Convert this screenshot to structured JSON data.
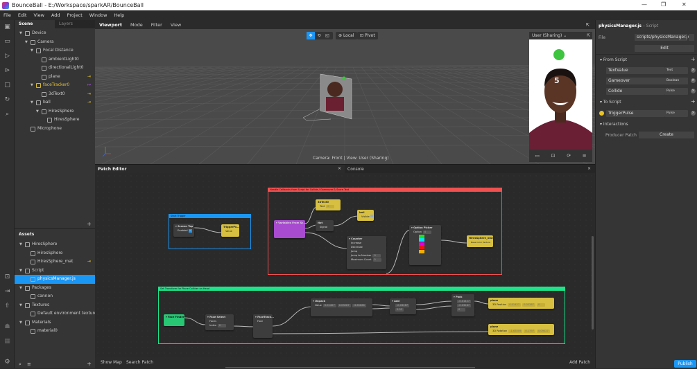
{
  "window": {
    "title": "BounceBall - E:/Workspace/sparkAR/BounceBall",
    "controls": [
      "—",
      "❐",
      "✕"
    ]
  },
  "menu": [
    "File",
    "Edit",
    "View",
    "Add",
    "Project",
    "Window",
    "Help"
  ],
  "scene_panel": {
    "tabs": [
      "Scene",
      "Layers"
    ],
    "items": [
      {
        "label": "Device",
        "depth": 0,
        "arrow": true
      },
      {
        "label": "Camera",
        "depth": 1,
        "arrow": true
      },
      {
        "label": "Focal Distance",
        "depth": 2,
        "arrow": true
      },
      {
        "label": "ambientLight0",
        "depth": 3
      },
      {
        "label": "directionalLight0",
        "depth": 3
      },
      {
        "label": "plane",
        "depth": 3,
        "pin": "⇥"
      },
      {
        "label": "faceTracker0",
        "depth": 2,
        "arrow": true,
        "pin": "↦",
        "highlight": true
      },
      {
        "label": "3dText0",
        "depth": 3,
        "pin": "⇥"
      },
      {
        "label": "ball",
        "depth": 2,
        "arrow": true,
        "pin": "⇥"
      },
      {
        "label": "HiresSphere",
        "depth": 3,
        "arrow": true
      },
      {
        "label": "HiresSphere",
        "depth": 4
      },
      {
        "label": "Microphone",
        "depth": 1
      }
    ],
    "add": "+"
  },
  "assets_panel": {
    "title": "Assets",
    "items": [
      {
        "label": "HiresSphere",
        "depth": 0,
        "arrow": true
      },
      {
        "label": "HiresSphere",
        "depth": 1
      },
      {
        "label": "HiresSphere_mat",
        "depth": 1,
        "pin": "⇥"
      },
      {
        "label": "Script",
        "depth": 0,
        "arrow": true
      },
      {
        "label": "physicsManager.js",
        "depth": 1,
        "selected": true
      },
      {
        "label": "Packages",
        "depth": 0,
        "arrow": true
      },
      {
        "label": "cannon",
        "depth": 1
      },
      {
        "label": "Textures",
        "depth": 0,
        "arrow": true
      },
      {
        "label": "Default environment texture",
        "depth": 1
      },
      {
        "label": "Materials",
        "depth": 0,
        "arrow": true
      },
      {
        "label": "material0",
        "depth": 1
      }
    ],
    "add": "+"
  },
  "viewport": {
    "tabs": [
      "Viewport",
      "Mode",
      "Filter",
      "View"
    ],
    "toolbar": {
      "local": "Local",
      "pivot": "Pivot"
    },
    "status": "Camera: Front | View: User (Sharing)",
    "preview": {
      "device": "User (Sharing)",
      "score": "5"
    }
  },
  "inspector": {
    "title": "physicsManager.js",
    "subtitle": "– Script",
    "file_label": "File",
    "file_value": "scripts/physicsManager.js",
    "edit": "Edit",
    "from_script": {
      "title": "From Script",
      "rows": [
        {
          "name": "TextValue",
          "type": "Text"
        },
        {
          "name": "Gameover",
          "type": "Boolean"
        },
        {
          "name": "Collide",
          "type": "Pulse"
        }
      ]
    },
    "to_script": {
      "title": "To Script",
      "rows": [
        {
          "name": "TriggerPulse",
          "type": "Pulse"
        }
      ]
    },
    "interactions": {
      "title": "Interactions",
      "producer_label": "Producer Patch",
      "create": "Create"
    }
  },
  "patch_editor": {
    "tab": "Patch Editor",
    "console": "Console",
    "show_map": "Show Map",
    "search_patch": "Search Patch",
    "add_patch": "Add Patch",
    "groups": {
      "start": "Start Trigger",
      "callbacks": "Handle Callbacks from Script for Collide / Gameover & Score Text",
      "transform": "Set Transform for Plane Collider on Head"
    },
    "nodes": {
      "screen_tap": {
        "title": "Screen Tap",
        "enabled": "Enabled"
      },
      "trigger": {
        "title": "TriggerPu...",
        "port": "Value"
      },
      "variables": {
        "title": "Variables From Sc..."
      },
      "text3d": {
        "title": "3dText0",
        "port": "Text",
        "value": "0"
      },
      "not": {
        "title": "Not",
        "port": "Signal"
      },
      "ball": {
        "title": "ball",
        "port": "Visible"
      },
      "counter": {
        "title": "Counter",
        "ports": [
          "Increase",
          "Decrease",
          "Jump",
          "Jump to Number",
          "Maximum Count"
        ],
        "jump_to": "0",
        "max": "5"
      },
      "option_picker": {
        "title": "Option Picker",
        "port": "Option",
        "option_value": "0",
        "colors": [
          "#22dd22",
          "#00e5ee",
          "#dd00dd",
          "#ee1111",
          "#f0b000"
        ]
      },
      "mat": {
        "title": "HiresSphere_mat",
        "port": "Base Color Texture"
      },
      "face_finder": {
        "title": "Face Finder"
      },
      "face_select": {
        "title": "Face Select",
        "ports": [
          "Faces",
          "Index"
        ],
        "index": "0"
      },
      "face_tracker": {
        "title": "FaceTrack...",
        "port": "Face"
      },
      "unpack": {
        "title": "Unpack",
        "port": "Value",
        "values": [
          "0.01427",
          "0.03287",
          "-3.65666"
        ]
      },
      "add": {
        "title": "Add",
        "values": [
          "-0.03287",
          "0.02"
        ]
      },
      "pack": {
        "title": "Pack",
        "values": [
          "-0.01427",
          "-0.03287",
          "0"
        ]
      },
      "plane_pos": {
        "title": "plane",
        "port": "3D Position",
        "values": [
          "0.01427",
          "0.03287",
          "0"
        ]
      },
      "plane_rot": {
        "title": "plane",
        "port": "3D Rotation",
        "values": [
          "-1.63509",
          "0.1797",
          "0.09027"
        ]
      }
    }
  },
  "publish": "Publish",
  "colors": {
    "accent": "#1a96f5",
    "start_group": "#1a96f5",
    "callback_group": "#f05050",
    "transform_group": "#1ee38a",
    "yellow_node": "#d7c041",
    "purple_node": "#a84bd0",
    "green_node": "#27c774"
  }
}
